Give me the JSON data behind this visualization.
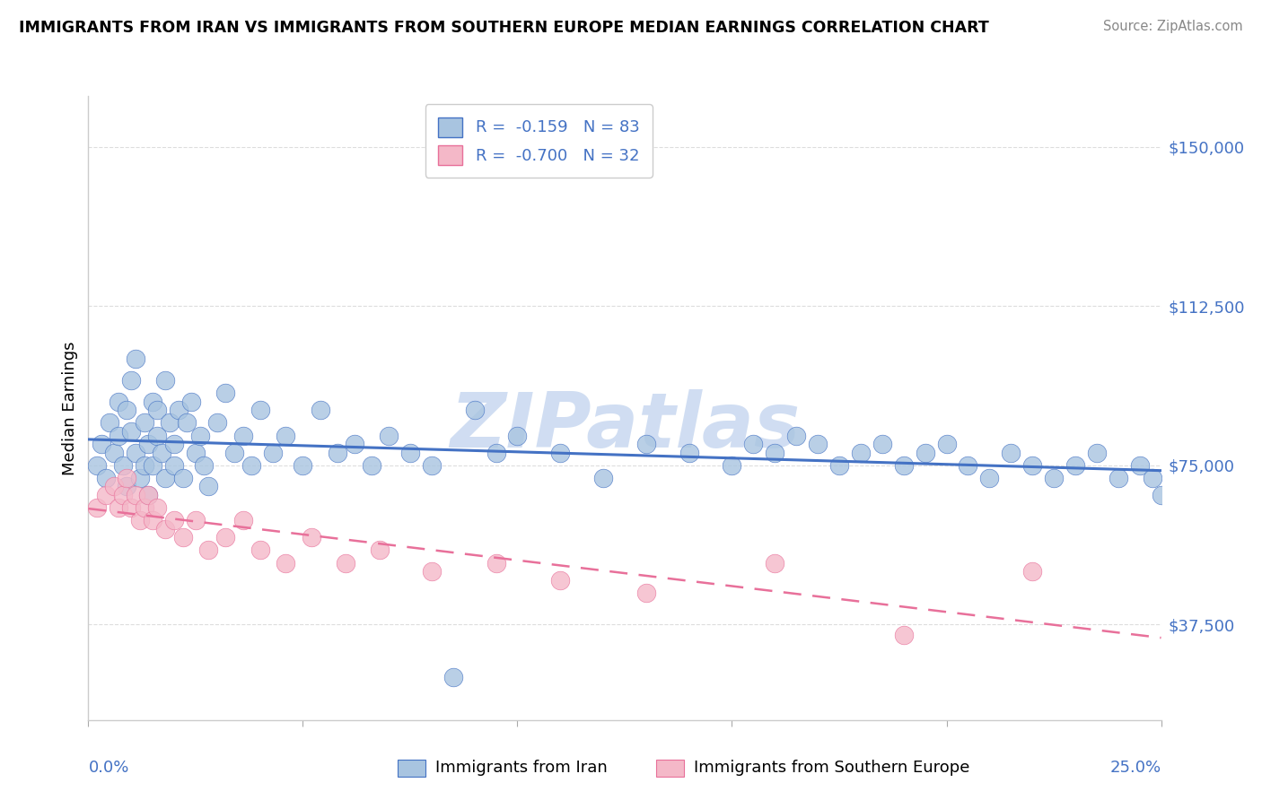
{
  "title": "IMMIGRANTS FROM IRAN VS IMMIGRANTS FROM SOUTHERN EUROPE MEDIAN EARNINGS CORRELATION CHART",
  "source": "Source: ZipAtlas.com",
  "ylabel": "Median Earnings",
  "yticks": [
    37500,
    75000,
    112500,
    150000
  ],
  "ytick_labels": [
    "$37,500",
    "$75,000",
    "$112,500",
    "$150,000"
  ],
  "xlim": [
    0.0,
    0.25
  ],
  "ylim": [
    15000,
    162000
  ],
  "iran_R": "-0.159",
  "iran_N": "83",
  "southern_R": "-0.700",
  "southern_N": "32",
  "iran_color": "#a8c4e0",
  "southern_color": "#f4b8c8",
  "iran_line_color": "#4472c4",
  "southern_line_color": "#e8709a",
  "watermark": "ZIPatlas",
  "legend_iran_label": "R =  -0.159   N = 83",
  "legend_southern_label": "R =  -0.700   N = 32",
  "bottom_label_iran": "Immigrants from Iran",
  "bottom_label_southern": "Immigrants from Southern Europe",
  "iran_x": [
    0.002,
    0.003,
    0.004,
    0.005,
    0.006,
    0.007,
    0.007,
    0.008,
    0.009,
    0.009,
    0.01,
    0.01,
    0.011,
    0.011,
    0.012,
    0.013,
    0.013,
    0.014,
    0.014,
    0.015,
    0.015,
    0.016,
    0.016,
    0.017,
    0.018,
    0.018,
    0.019,
    0.02,
    0.02,
    0.021,
    0.022,
    0.023,
    0.024,
    0.025,
    0.026,
    0.027,
    0.028,
    0.03,
    0.032,
    0.034,
    0.036,
    0.038,
    0.04,
    0.043,
    0.046,
    0.05,
    0.054,
    0.058,
    0.062,
    0.066,
    0.07,
    0.075,
    0.08,
    0.085,
    0.09,
    0.095,
    0.1,
    0.11,
    0.12,
    0.13,
    0.14,
    0.15,
    0.155,
    0.16,
    0.165,
    0.17,
    0.175,
    0.18,
    0.185,
    0.19,
    0.195,
    0.2,
    0.205,
    0.21,
    0.215,
    0.22,
    0.225,
    0.23,
    0.235,
    0.24,
    0.245,
    0.248,
    0.25
  ],
  "iran_y": [
    75000,
    80000,
    72000,
    85000,
    78000,
    82000,
    90000,
    75000,
    88000,
    70000,
    95000,
    83000,
    100000,
    78000,
    72000,
    85000,
    75000,
    80000,
    68000,
    90000,
    75000,
    88000,
    82000,
    78000,
    72000,
    95000,
    85000,
    80000,
    75000,
    88000,
    72000,
    85000,
    90000,
    78000,
    82000,
    75000,
    70000,
    85000,
    92000,
    78000,
    82000,
    75000,
    88000,
    78000,
    82000,
    75000,
    88000,
    78000,
    80000,
    75000,
    82000,
    78000,
    75000,
    25000,
    88000,
    78000,
    82000,
    78000,
    72000,
    80000,
    78000,
    75000,
    80000,
    78000,
    82000,
    80000,
    75000,
    78000,
    80000,
    75000,
    78000,
    80000,
    75000,
    72000,
    78000,
    75000,
    72000,
    75000,
    78000,
    72000,
    75000,
    72000,
    68000
  ],
  "southern_x": [
    0.002,
    0.004,
    0.006,
    0.007,
    0.008,
    0.009,
    0.01,
    0.011,
    0.012,
    0.013,
    0.014,
    0.015,
    0.016,
    0.018,
    0.02,
    0.022,
    0.025,
    0.028,
    0.032,
    0.036,
    0.04,
    0.046,
    0.052,
    0.06,
    0.068,
    0.08,
    0.095,
    0.11,
    0.13,
    0.16,
    0.19,
    0.22
  ],
  "southern_y": [
    65000,
    68000,
    70000,
    65000,
    68000,
    72000,
    65000,
    68000,
    62000,
    65000,
    68000,
    62000,
    65000,
    60000,
    62000,
    58000,
    62000,
    55000,
    58000,
    62000,
    55000,
    52000,
    58000,
    52000,
    55000,
    50000,
    52000,
    48000,
    45000,
    52000,
    35000,
    50000
  ]
}
